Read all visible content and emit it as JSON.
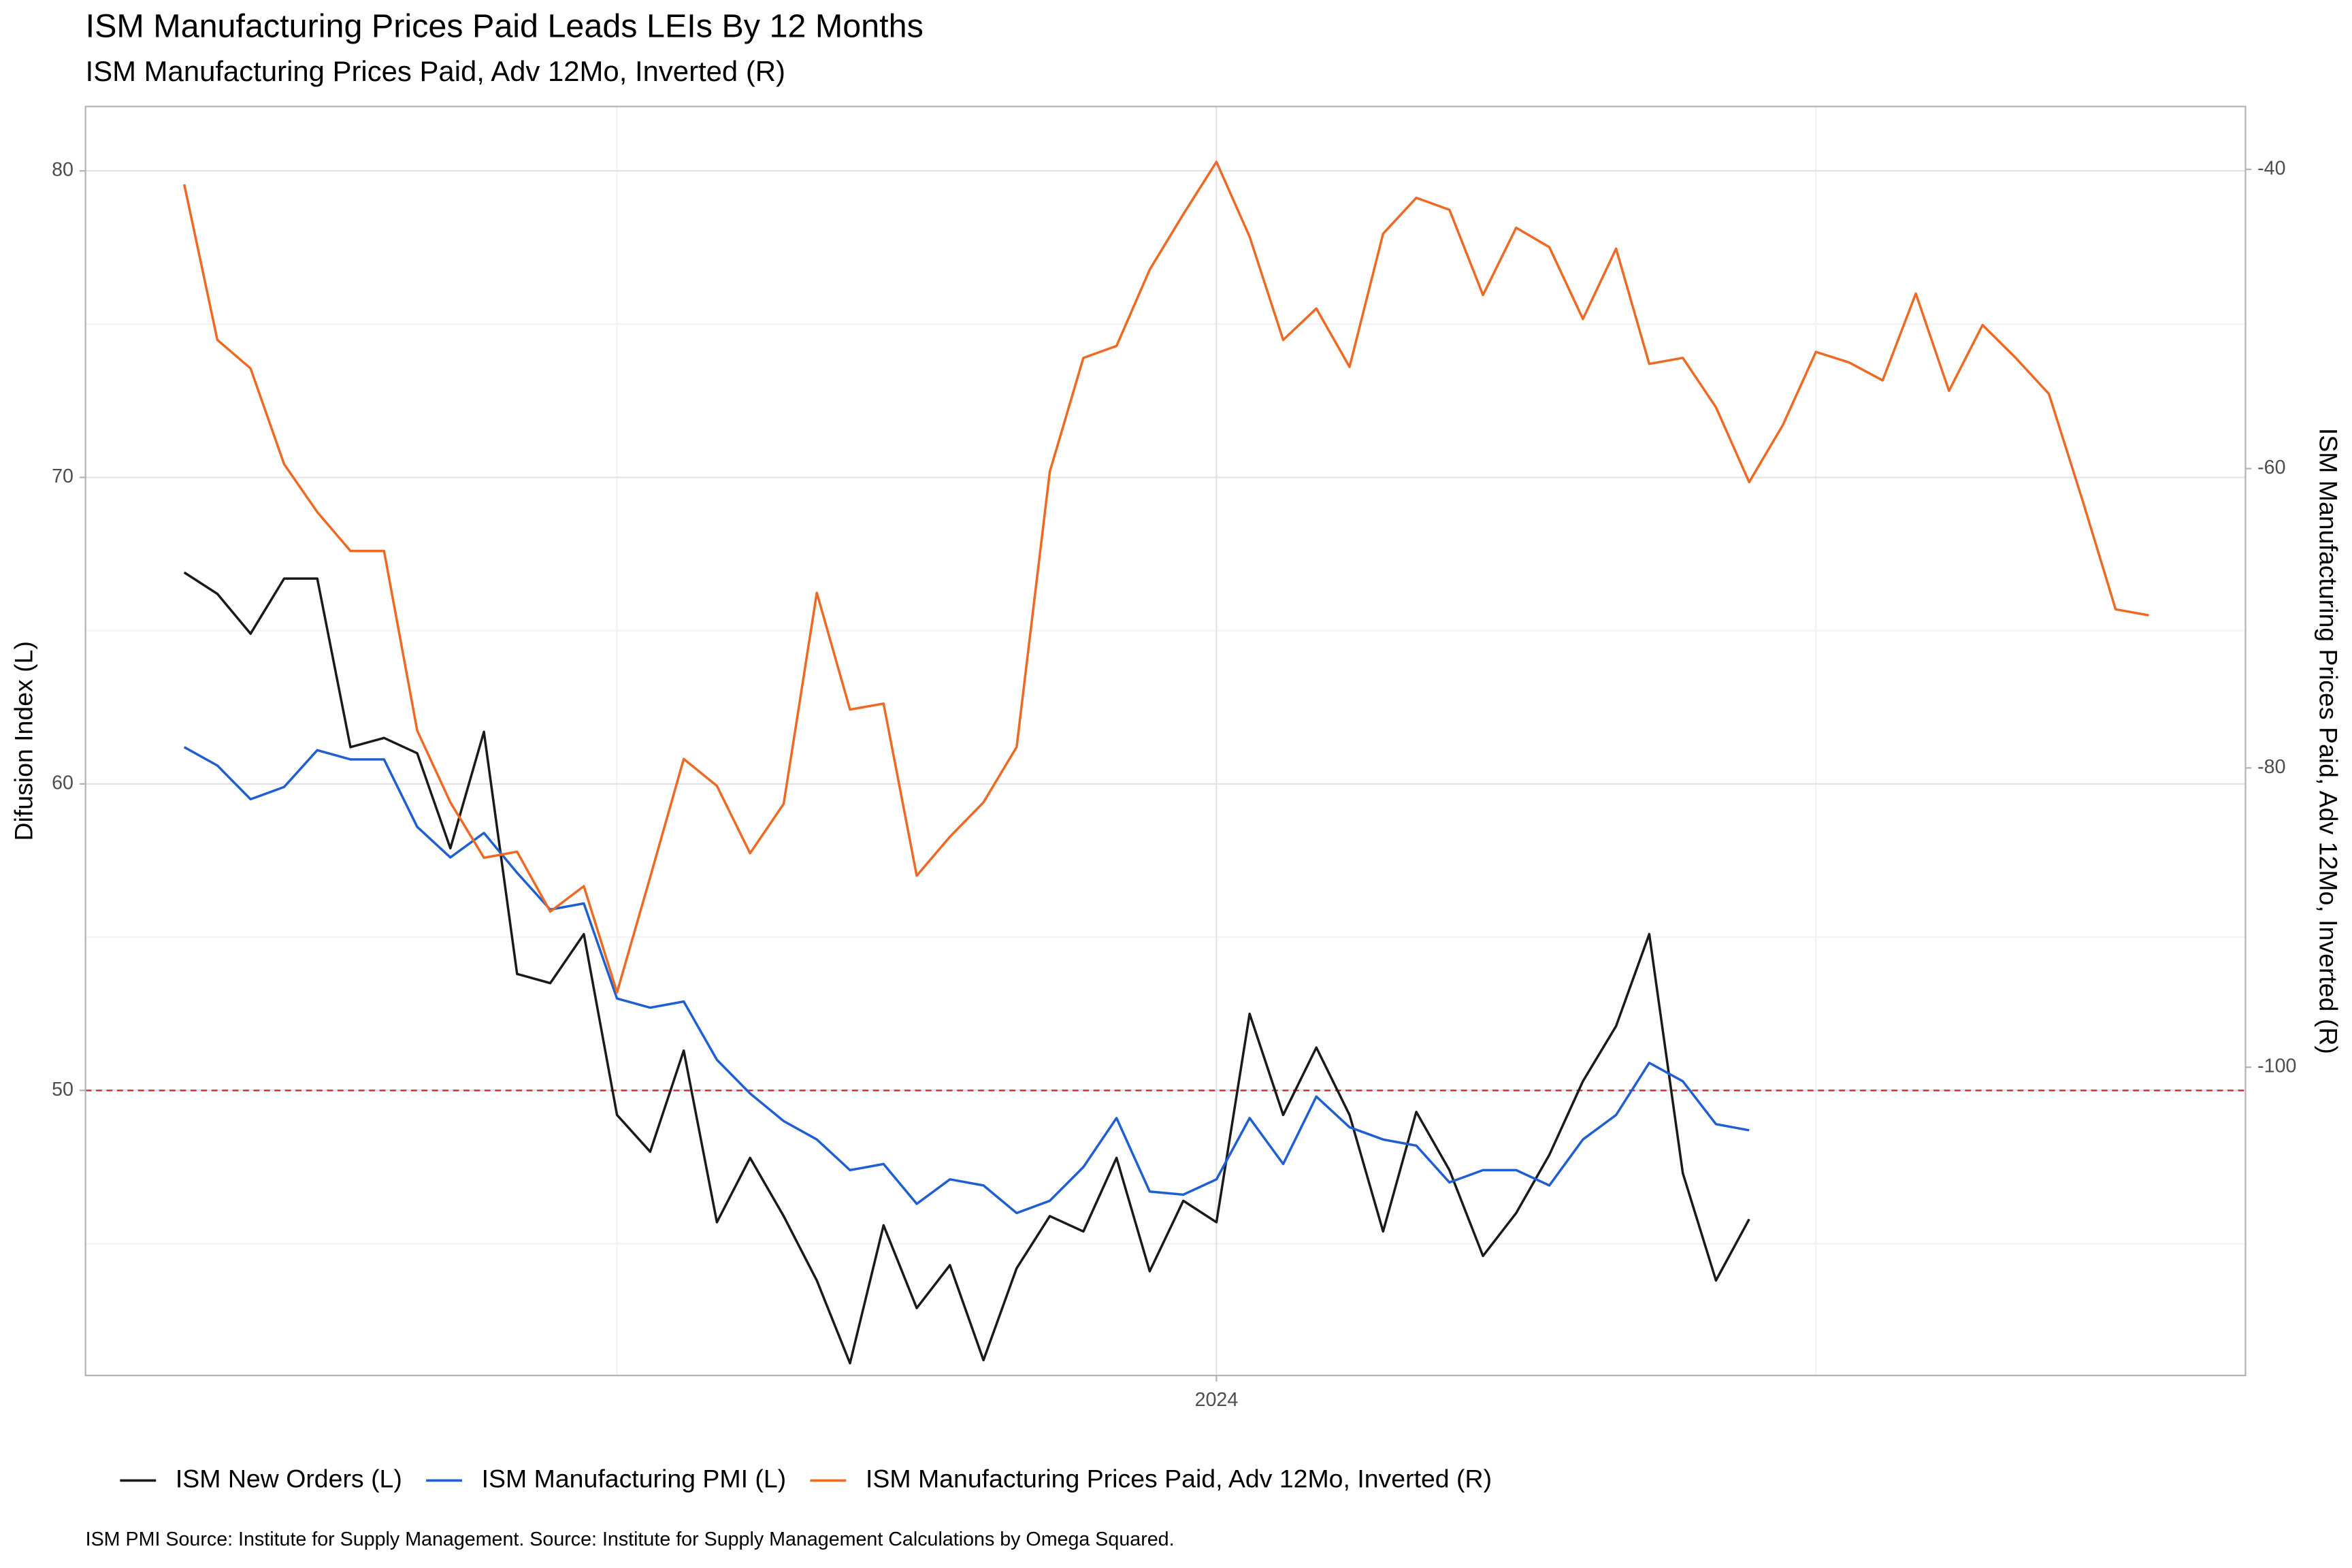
{
  "chart_data": {
    "type": "line",
    "title": "ISM Manufacturing Prices Paid  Leads LEIs By  12  Months",
    "subtitle": "ISM Manufacturing Prices Paid, Adv 12Mo, Inverted (R)",
    "y_label": "Difusion Index (L)",
    "y2_label": "ISM Manufacturing Prices Paid, Adv 12Mo, Inverted (R)",
    "caption": "ISM PMI Source: Institute for Supply Management. Source: Institute for Supply Management  Calculations by Omega Squared.",
    "x": [
      2021.417,
      2021.5,
      2021.583,
      2021.667,
      2021.75,
      2021.833,
      2021.917,
      2022.0,
      2022.083,
      2022.167,
      2022.25,
      2022.333,
      2022.417,
      2022.5,
      2022.583,
      2022.667,
      2022.75,
      2022.833,
      2022.917,
      2023.0,
      2023.083,
      2023.167,
      2023.25,
      2023.333,
      2023.417,
      2023.5,
      2023.583,
      2023.667,
      2023.75,
      2023.833,
      2023.917,
      2024.0,
      2024.083,
      2024.167,
      2024.25,
      2024.333,
      2024.417,
      2024.5,
      2024.583,
      2024.667,
      2024.75,
      2024.833,
      2024.917,
      2025.0,
      2025.083,
      2025.167,
      2025.25,
      2025.333,
      2025.417,
      2025.5,
      2025.583,
      2025.667,
      2025.75,
      2025.833,
      2025.917,
      2026.0,
      2026.083,
      2026.167,
      2026.25,
      2026.333
    ],
    "xlim": [
      2021.17,
      2026.575
    ],
    "xticks": [
      2024
    ],
    "xminor": [
      2022.5,
      2025.5
    ],
    "ylim": [
      40.7,
      82.1
    ],
    "yticks": [
      50,
      60,
      70,
      80
    ],
    "yminor": [
      45,
      55,
      65,
      75
    ],
    "y2lim": [
      -120.6,
      -35.8
    ],
    "y2ticks": [
      -100,
      -80,
      -60,
      -40
    ],
    "hline": 50,
    "hline_color": "#d23a3a",
    "grid": true,
    "legend": "bottom",
    "series": [
      {
        "name": "ISM New Orders (L)",
        "color": "#1a1a1a",
        "axis": "y",
        "values": [
          66.9,
          66.2,
          64.9,
          66.7,
          66.7,
          61.2,
          61.5,
          61.0,
          57.9,
          61.7,
          53.8,
          53.5,
          55.1,
          49.2,
          48.0,
          51.3,
          45.7,
          47.8,
          45.9,
          43.8,
          41.1,
          45.6,
          42.9,
          44.3,
          41.2,
          44.2,
          45.9,
          45.4,
          47.8,
          44.1,
          46.4,
          45.7,
          52.5,
          49.2,
          51.4,
          49.2,
          45.4,
          49.3,
          47.4,
          44.6,
          46.0,
          47.9,
          50.3,
          52.1,
          55.1,
          47.3,
          43.8,
          45.8,
          null,
          null,
          null,
          null,
          null,
          null,
          null,
          null,
          null,
          null,
          null,
          null
        ]
      },
      {
        "name": "ISM Manufacturing PMI (L)",
        "color": "#1f5fd1",
        "axis": "y",
        "values": [
          61.2,
          60.6,
          59.5,
          59.9,
          61.1,
          60.8,
          60.8,
          58.6,
          57.6,
          58.4,
          57.1,
          55.9,
          56.1,
          53.0,
          52.7,
          52.9,
          51.0,
          49.9,
          49.0,
          48.4,
          47.4,
          47.6,
          46.3,
          47.1,
          46.9,
          46.0,
          46.4,
          47.5,
          49.1,
          46.7,
          46.6,
          47.1,
          49.1,
          47.6,
          49.8,
          48.8,
          48.4,
          48.2,
          47.0,
          47.4,
          47.4,
          46.9,
          48.4,
          49.2,
          50.9,
          50.3,
          48.9,
          48.7,
          null,
          null,
          null,
          null,
          null,
          null,
          null,
          null,
          null,
          null,
          null,
          null
        ]
      },
      {
        "name": "ISM Manufacturing Prices Paid, Adv 12Mo, Inverted (R)",
        "color": "#ee6a24",
        "axis": "y2",
        "values": [
          -41.0,
          -51.4,
          -53.3,
          -59.7,
          -62.9,
          -65.5,
          -65.5,
          -77.5,
          -82.3,
          -86.0,
          -85.6,
          -89.6,
          -87.9,
          -95.0,
          -87.3,
          -79.4,
          -81.2,
          -85.7,
          -82.4,
          -68.3,
          -76.1,
          -75.7,
          -87.2,
          -84.6,
          -82.3,
          -78.6,
          -60.2,
          -52.6,
          -51.8,
          -46.7,
          -43.0,
          -39.5,
          -44.5,
          -51.4,
          -49.3,
          -53.2,
          -44.3,
          -41.9,
          -42.7,
          -48.4,
          -43.9,
          -45.2,
          -50.0,
          -45.3,
          -53.0,
          -52.6,
          -55.9,
          -60.9,
          -57.1,
          -52.2,
          -52.9,
          -54.1,
          -48.3,
          -54.8,
          -50.4,
          -52.6,
          -55.0,
          -62.1,
          -69.4,
          -69.8
        ]
      }
    ]
  }
}
